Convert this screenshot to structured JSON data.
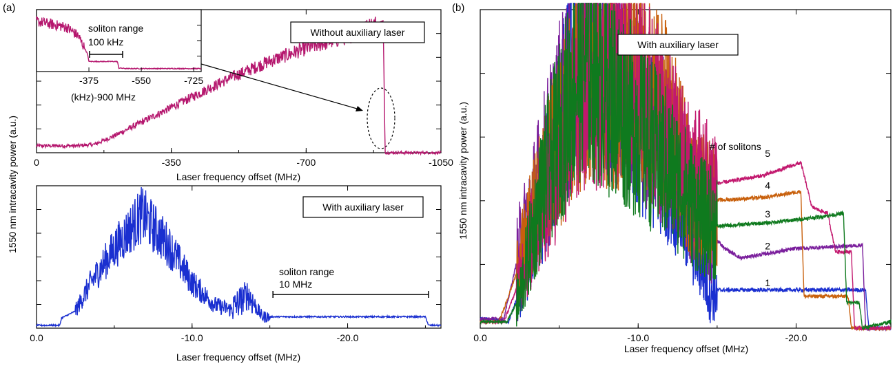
{
  "panel_a_label": "(a)",
  "panel_b_label": "(b)",
  "y_label_shared_a": "1550 nm intracavity power (a.u.)",
  "colors": {
    "crimson": "#b5176e",
    "blue": "#1a2fd0",
    "purple": "#7a1e9c",
    "orange": "#c8600c",
    "green": "#0f7a1e",
    "magenta": "#c2186e"
  },
  "chart_data": [
    {
      "id": "a-top",
      "type": "line",
      "xlabel": "Laser frequency offset (MHz)",
      "xlim": [
        0,
        -1050
      ],
      "ticks": [
        "0",
        "-350",
        "-700",
        "-1050"
      ],
      "tick_values": [
        0,
        -350,
        -700,
        -1050
      ],
      "legend_box": "Without auxiliary laser",
      "series": [
        {
          "color": "#b5176e",
          "x": [
            0,
            -100,
            -150,
            -200,
            -300,
            -400,
            -500,
            -600,
            -700,
            -800,
            -850,
            -900,
            -905
          ],
          "y": [
            0.05,
            0.05,
            0.06,
            0.12,
            0.26,
            0.4,
            0.54,
            0.66,
            0.76,
            0.84,
            0.9,
            0.96,
            0.0
          ]
        }
      ],
      "callout_ellipse_x": -900
    },
    {
      "id": "a-inset",
      "type": "line",
      "xlabel": "(kHz)-900 MHz",
      "xlim": [
        -200,
        -750
      ],
      "ticks": [
        "-375",
        "-550",
        "-725"
      ],
      "tick_values": [
        -375,
        -550,
        -725
      ],
      "annotation_title": "soliton range",
      "annotation_value": "100 kHz",
      "series": [
        {
          "color": "#b5176e",
          "x": [
            -200,
            -300,
            -340,
            -370,
            -375,
            -470,
            -475,
            -500,
            -750
          ],
          "y": [
            0.85,
            0.75,
            0.6,
            0.3,
            0.17,
            0.17,
            0.06,
            0.05,
            0.05
          ]
        }
      ]
    },
    {
      "id": "a-bottom",
      "type": "line",
      "xlabel": "Laser frequency offset (MHz)",
      "xlim": [
        0,
        -26
      ],
      "ticks": [
        "0.0",
        "-10.0",
        "-20.0"
      ],
      "tick_values": [
        0,
        -10,
        -20
      ],
      "legend_box": "With auxiliary laser",
      "annotation_title": "soliton range",
      "annotation_value": "10 MHz",
      "range_mhz": [
        -15.2,
        -25.2
      ],
      "series": [
        {
          "color": "#1a2fd0",
          "x": [
            0,
            -1.5,
            -1.6,
            -2.5,
            -3.5,
            -5.0,
            -6.8,
            -8.5,
            -10.0,
            -11.5,
            -12.5,
            -13.6,
            -14.5,
            -15.5,
            -20.0,
            -25.0,
            -25.2,
            -26
          ],
          "y": [
            0.02,
            0.02,
            0.07,
            0.12,
            0.32,
            0.56,
            0.8,
            0.58,
            0.32,
            0.16,
            0.13,
            0.24,
            0.08,
            0.08,
            0.08,
            0.08,
            0.02,
            0.02
          ]
        }
      ]
    },
    {
      "id": "b",
      "type": "line",
      "xlabel": "Laser frequency offset (MHz)",
      "ylabel": "1550 nm intracavity power (a.u.)",
      "xlim": [
        0,
        -26
      ],
      "ticks": [
        "0.0",
        "-10.0",
        "-20.0"
      ],
      "tick_values": [
        0,
        -10,
        -20
      ],
      "legend_box": "With auxiliary laser",
      "legend_title": "# of solitons",
      "series": [
        {
          "name": "1",
          "color": "#1a2fd0",
          "x": [
            0,
            -1.8,
            -2.5,
            -4,
            -6.8,
            -9,
            -12,
            -14,
            -14.5,
            -20,
            -24.4,
            -24.6,
            -26
          ],
          "y": [
            0.03,
            0.02,
            0.12,
            0.42,
            1.0,
            0.75,
            0.5,
            0.22,
            0.12,
            0.12,
            0.12,
            0.0,
            0.0
          ]
        },
        {
          "name": "2",
          "color": "#7a1e9c",
          "x": [
            0,
            -1.5,
            -2.5,
            -4,
            -6.5,
            -9,
            -12,
            -14.5,
            -15.5,
            -16.5,
            -20,
            -24.2,
            -24.4,
            -26
          ],
          "y": [
            0.03,
            0.03,
            0.25,
            0.5,
            0.9,
            0.8,
            0.55,
            0.3,
            0.25,
            0.22,
            0.25,
            0.26,
            0.0,
            0.0
          ]
        },
        {
          "name": "3",
          "color": "#0f7a1e",
          "x": [
            0,
            -1.7,
            -2.5,
            -4,
            -6.5,
            -9,
            -12,
            -14,
            -15,
            -18,
            -20,
            -23.0,
            -23.2,
            -24,
            -24.2,
            -26
          ],
          "y": [
            0.02,
            0.02,
            0.1,
            0.45,
            0.85,
            0.7,
            0.5,
            0.35,
            0.32,
            0.33,
            0.34,
            0.36,
            0.08,
            0.08,
            0.0,
            0.02
          ]
        },
        {
          "name": "4",
          "color": "#c8600c",
          "x": [
            0,
            -1.2,
            -2.5,
            -4,
            -6.5,
            -9,
            -11.5,
            -13.5,
            -14.5,
            -18,
            -20.3,
            -20.5,
            -23.3,
            -23.5,
            -26
          ],
          "y": [
            0.02,
            0.02,
            0.2,
            0.45,
            0.8,
            0.78,
            0.7,
            0.42,
            0.4,
            0.41,
            0.43,
            0.1,
            0.1,
            0.0,
            0.0
          ]
        },
        {
          "name": "5",
          "color": "#c2186e",
          "x": [
            0,
            -1.5,
            -2.5,
            -4,
            -6.5,
            -9,
            -11,
            -13,
            -14.5,
            -18,
            -20.3,
            -21,
            -22,
            -22.5,
            -23.5,
            -23.7,
            -26
          ],
          "y": [
            0.02,
            0.02,
            0.15,
            0.4,
            0.75,
            0.8,
            0.7,
            0.5,
            0.45,
            0.48,
            0.52,
            0.38,
            0.36,
            0.24,
            0.24,
            0.0,
            0.0
          ]
        }
      ]
    }
  ]
}
